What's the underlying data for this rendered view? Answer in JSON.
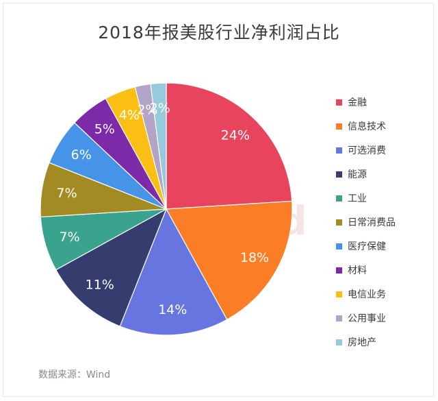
{
  "chart_data": {
    "type": "pie",
    "title": "2018年报美股行业净利润占比",
    "categories": [
      "金融",
      "信息技术",
      "可选消费",
      "能源",
      "工业",
      "日常消费品",
      "医疗保健",
      "材料",
      "电信业务",
      "公用事业",
      "房地产"
    ],
    "values": [
      24,
      18,
      14,
      11,
      7,
      7,
      6,
      5,
      4,
      2,
      2
    ],
    "labels": [
      "24%",
      "18%",
      "14%",
      "11%",
      "7%",
      "7%",
      "6%",
      "5%",
      "4%",
      "2%",
      "2%"
    ],
    "colors": [
      "#e8445e",
      "#fb7e27",
      "#6675e0",
      "#353c6e",
      "#3aa38d",
      "#a38b24",
      "#4594e8",
      "#7d2aa9",
      "#fbbf13",
      "#b2a4c7",
      "#97cadb"
    ],
    "legend_position": "right",
    "start": "12 o'clock, clockwise"
  },
  "watermark": "Win.d",
  "source": "数据来源：Wind"
}
